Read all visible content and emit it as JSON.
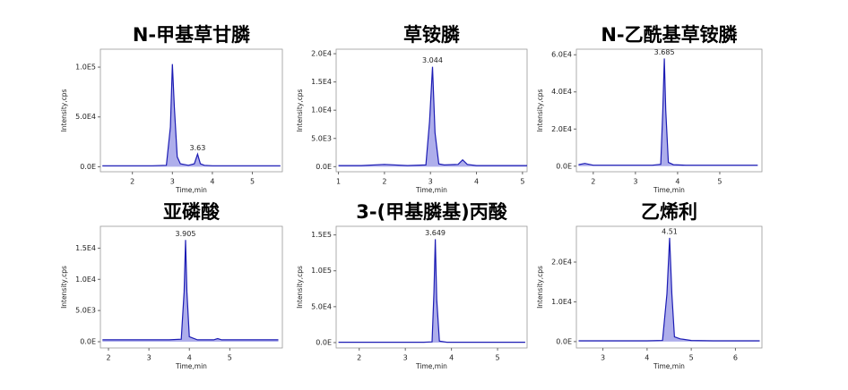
{
  "chart_data": [
    {
      "type": "line",
      "title": "N-甲基草甘膦",
      "x_label": "Time,min",
      "y_label": "Intensity,cps",
      "color": "#1c1cb4",
      "fill": "#9a9ae6",
      "x": [
        1.25,
        2.0,
        2.5,
        2.85,
        2.95,
        3.0,
        3.05,
        3.12,
        3.2,
        3.4,
        3.55,
        3.63,
        3.7,
        3.8,
        4.0,
        4.5,
        5.0,
        5.5,
        5.7
      ],
      "values": [
        1000,
        1000,
        1000,
        1500,
        40000,
        103000,
        60000,
        10000,
        3000,
        1500,
        3000,
        12700,
        3000,
        1500,
        1000,
        1000,
        1000,
        1000,
        1000
      ],
      "annotations": [
        {
          "text": "3.63",
          "x": 3.63,
          "y": 12700
        }
      ],
      "xlim": [
        1.2,
        5.75
      ],
      "xticks": [
        2,
        3,
        4,
        5
      ],
      "ylim": [
        -5000,
        118000
      ],
      "yticks": [
        {
          "value": 0,
          "label": "0.0E"
        },
        {
          "value": 50000,
          "label": "5.0E4"
        },
        {
          "value": 100000,
          "label": "1.0E5"
        }
      ]
    },
    {
      "type": "line",
      "title": "草铵膦",
      "x_label": "Time,min",
      "y_label": "Intensity,cps",
      "color": "#1c1cb4",
      "fill": "#9a9ae6",
      "x": [
        1,
        1.5,
        2,
        2.5,
        2.9,
        2.98,
        3.044,
        3.1,
        3.18,
        3.3,
        3.6,
        3.7,
        3.8,
        4,
        4.5,
        5,
        5.1
      ],
      "values": [
        200,
        200,
        400,
        200,
        300,
        8000,
        17700,
        6000,
        500,
        300,
        400,
        1200,
        400,
        200,
        200,
        200,
        200
      ],
      "annotations": [
        {
          "text": "3.044",
          "x": 3.044,
          "y": 17700
        }
      ],
      "xlim": [
        0.95,
        5.1
      ],
      "xticks": [
        1,
        2,
        3,
        4,
        5
      ],
      "ylim": [
        -900,
        20800
      ],
      "yticks": [
        {
          "value": 0,
          "label": "0.0E"
        },
        {
          "value": 5000,
          "label": "5.0E3"
        },
        {
          "value": 10000,
          "label": "1.0E4"
        },
        {
          "value": 15000,
          "label": "1.5E4"
        },
        {
          "value": 20000,
          "label": "2.0E4"
        }
      ]
    },
    {
      "type": "line",
      "title": "N-乙酰基草铵膦",
      "x_label": "Time,min",
      "y_label": "Intensity,cps",
      "color": "#1c1cb4",
      "fill": "#9a9ae6",
      "x": [
        1.65,
        1.8,
        2,
        2.5,
        3,
        3.4,
        3.6,
        3.65,
        3.685,
        3.72,
        3.78,
        3.9,
        4.2,
        4.5,
        5,
        5.5,
        5.9
      ],
      "values": [
        800,
        1500,
        500,
        500,
        500,
        500,
        1000,
        30000,
        58000,
        30000,
        2000,
        800,
        500,
        500,
        500,
        500,
        500
      ],
      "annotations": [
        {
          "text": "3.685",
          "x": 3.685,
          "y": 58000
        }
      ],
      "xlim": [
        1.6,
        6.0
      ],
      "xticks": [
        2,
        3,
        4,
        5
      ],
      "ylim": [
        -3000,
        63000
      ],
      "yticks": [
        {
          "value": 0,
          "label": "0.0E"
        },
        {
          "value": 20000,
          "label": "2.0E4"
        },
        {
          "value": 40000,
          "label": "4.0E4"
        },
        {
          "value": 60000,
          "label": "6.0E4"
        }
      ]
    },
    {
      "type": "line",
      "title": "亚磷酸",
      "x_label": "Time,min",
      "y_label": "Intensity,cps",
      "color": "#1c1cb4",
      "fill": "#9a9ae6",
      "x": [
        1.85,
        2,
        2.5,
        3,
        3.5,
        3.8,
        3.87,
        3.905,
        3.94,
        4.0,
        4.2,
        4.6,
        4.7,
        4.8,
        5,
        5.5,
        6.2
      ],
      "values": [
        300,
        300,
        300,
        300,
        300,
        400,
        8000,
        16300,
        8000,
        800,
        300,
        300,
        500,
        300,
        300,
        300,
        300
      ],
      "annotations": [
        {
          "text": "3.905",
          "x": 3.905,
          "y": 16300
        }
      ],
      "xlim": [
        1.8,
        6.3
      ],
      "xticks": [
        2,
        3,
        4,
        5
      ],
      "ylim": [
        -1000,
        18500
      ],
      "yticks": [
        {
          "value": 0,
          "label": "0.0E"
        },
        {
          "value": 5000,
          "label": "5.0E3"
        },
        {
          "value": 10000,
          "label": "1.0E4"
        },
        {
          "value": 15000,
          "label": "1.5E4"
        }
      ]
    },
    {
      "type": "line",
      "title": "3-(甲基膦基)丙酸",
      "x_label": "Time,min",
      "y_label": "Intensity,cps",
      "color": "#1c1cb4",
      "fill": "#9a9ae6",
      "x": [
        1.55,
        2,
        2.5,
        3,
        3.4,
        3.58,
        3.62,
        3.649,
        3.68,
        3.74,
        3.9,
        4.3,
        4.8,
        5.3,
        5.6
      ],
      "values": [
        500,
        500,
        500,
        500,
        500,
        1000,
        70000,
        144000,
        60000,
        2000,
        500,
        500,
        500,
        500,
        500
      ],
      "annotations": [
        {
          "text": "3.649",
          "x": 3.649,
          "y": 144000
        }
      ],
      "xlim": [
        1.5,
        5.64
      ],
      "xticks": [
        2,
        3,
        4,
        5
      ],
      "ylim": [
        -7500,
        162000
      ],
      "yticks": [
        {
          "value": 0,
          "label": "0.0E"
        },
        {
          "value": 50000,
          "label": "5.0E4"
        },
        {
          "value": 100000,
          "label": "1.0E5"
        },
        {
          "value": 150000,
          "label": "1.5E5"
        }
      ]
    },
    {
      "type": "line",
      "title": "乙烯利",
      "x_label": "Time,min",
      "y_label": "Intensity,cps",
      "color": "#1c1cb4",
      "fill": "#9a9ae6",
      "x": [
        2.45,
        3,
        3.5,
        4,
        4.35,
        4.45,
        4.51,
        4.56,
        4.62,
        4.75,
        5,
        5.5,
        6,
        6.55
      ],
      "values": [
        200,
        200,
        200,
        200,
        300,
        12000,
        26100,
        12000,
        1200,
        700,
        300,
        200,
        200,
        200
      ],
      "annotations": [
        {
          "text": "4.51",
          "x": 4.51,
          "y": 26100
        }
      ],
      "xlim": [
        2.4,
        6.6
      ],
      "xticks": [
        3,
        4,
        5,
        6
      ],
      "ylim": [
        -1600,
        29000
      ],
      "yticks": [
        {
          "value": 0,
          "label": "0.0E"
        },
        {
          "value": 10000,
          "label": "1.0E4"
        },
        {
          "value": 20000,
          "label": "2.0E4"
        }
      ]
    }
  ]
}
